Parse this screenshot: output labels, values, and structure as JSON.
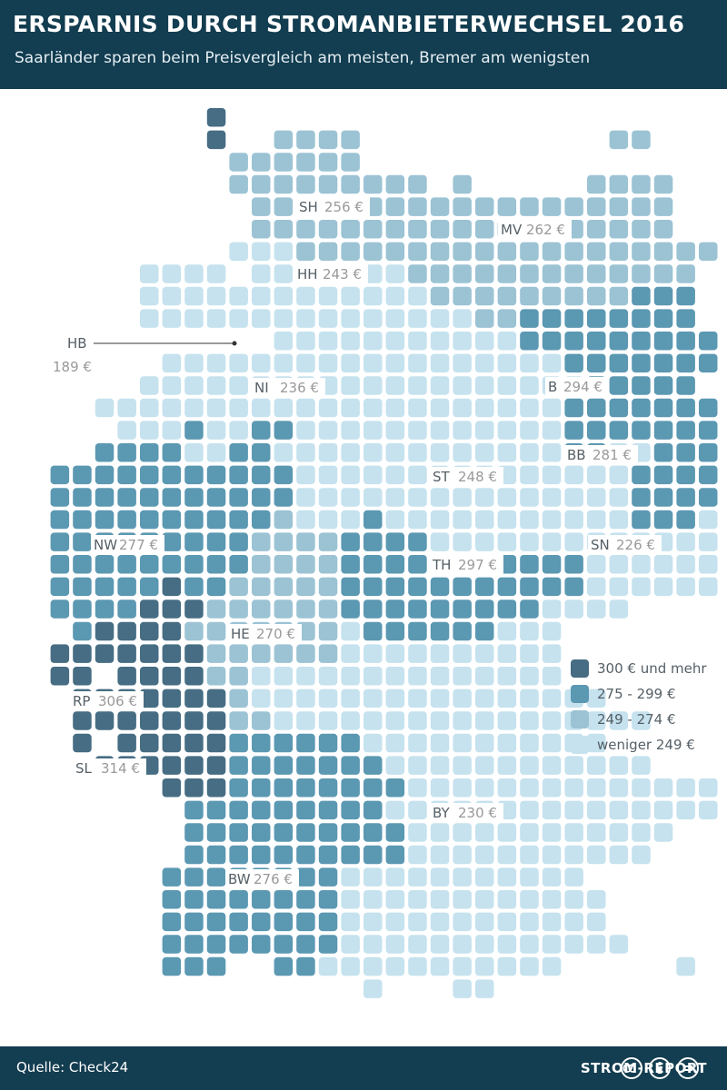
{
  "header": {
    "title": "ERSPARNIS DURCH STROMANBIETERWECHSEL 2016",
    "subtitle": "Saarländer sparen beim Preisvergleich am meisten, Bremer am wenigsten"
  },
  "footer": {
    "source": "Quelle: Check24",
    "brand": "STROM-REPORT",
    "license_icons": [
      "cc-icon",
      "by-icon",
      "nd-icon"
    ]
  },
  "colors": {
    "c300": "#466d83",
    "c275": "#5b98b2",
    "c249": "#9bc3d4",
    "clow": "#c5e2ee",
    "header_bg": "#133d50",
    "label": "#555f66",
    "label_value": "#999999"
  },
  "legend": [
    {
      "key": "c300",
      "label": "300 € und mehr"
    },
    {
      "key": "c275",
      "label": "275 - 299 €"
    },
    {
      "key": "c249",
      "label": "249 - 274 €"
    },
    {
      "key": "clow",
      "label": "weniger 249 €"
    }
  ],
  "states": [
    {
      "code": "SH",
      "value": "256 €",
      "category": "c249"
    },
    {
      "code": "MV",
      "value": "262 €",
      "category": "c249"
    },
    {
      "code": "HH",
      "value": "243 €",
      "category": "clow"
    },
    {
      "code": "HB",
      "value": "189 €",
      "category": "clow"
    },
    {
      "code": "NI",
      "value": "236 €",
      "category": "clow"
    },
    {
      "code": "B",
      "value": "294 €",
      "category": "c275"
    },
    {
      "code": "BB",
      "value": "281 €",
      "category": "c275"
    },
    {
      "code": "ST",
      "value": "248 €",
      "category": "clow"
    },
    {
      "code": "NW",
      "value": "277 €",
      "category": "c275"
    },
    {
      "code": "SN",
      "value": "226 €",
      "category": "clow"
    },
    {
      "code": "TH",
      "value": "297 €",
      "category": "c275"
    },
    {
      "code": "HE",
      "value": "270 €",
      "category": "c249"
    },
    {
      "code": "RP",
      "value": "306 €",
      "category": "c300"
    },
    {
      "code": "SL",
      "value": "314 €",
      "category": "c300"
    },
    {
      "code": "BY",
      "value": "230 €",
      "category": "clow"
    },
    {
      "code": "BW",
      "value": "276 €",
      "category": "c275"
    }
  ]
}
